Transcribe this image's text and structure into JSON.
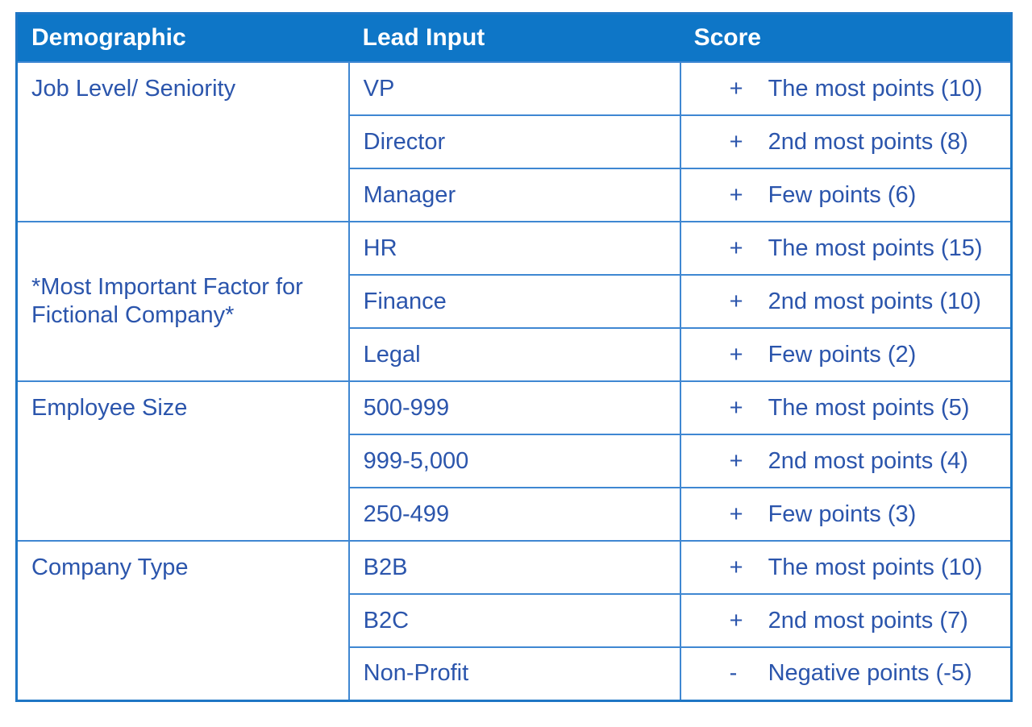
{
  "table": {
    "columns": [
      "Demographic",
      "Lead Input",
      "Score"
    ],
    "groups": [
      {
        "demographic": "Job Level/ Seniority",
        "rows": [
          {
            "lead": "VP",
            "sign": "+",
            "score": "The most points (10)"
          },
          {
            "lead": "Director",
            "sign": "+",
            "score": "2nd most points (8)"
          },
          {
            "lead": "Manager",
            "sign": "+",
            "score": "Few points (6)"
          }
        ]
      },
      {
        "demographic": "*Most Important Factor for Fictional Company*",
        "rows": [
          {
            "lead": "HR",
            "sign": "+",
            "score": "The most points (15)"
          },
          {
            "lead": "Finance",
            "sign": "+",
            "score": "2nd most points (10)"
          },
          {
            "lead": "Legal",
            "sign": "+",
            "score": "Few points (2)"
          }
        ]
      },
      {
        "demographic": "Employee Size",
        "rows": [
          {
            "lead": "500-999",
            "sign": "+",
            "score": "The most points (5)"
          },
          {
            "lead": "999-5,000",
            "sign": "+",
            "score": "2nd most points (4)"
          },
          {
            "lead": "250-499",
            "sign": "+",
            "score": "Few points (3)"
          }
        ]
      },
      {
        "demographic": "Company Type",
        "rows": [
          {
            "lead": "B2B",
            "sign": "+",
            "score": "The most points (10)"
          },
          {
            "lead": "B2C",
            "sign": "+",
            "score": "2nd most points (7)"
          },
          {
            "lead": "Non-Profit",
            "sign": "-",
            "score": "Negative points (-5)"
          }
        ]
      }
    ]
  },
  "colors": {
    "header_bg": "#0e76c7",
    "header_text": "#ffffff",
    "body_text": "#2b55ac",
    "border": "#3f87d2",
    "outer_border": "#1f76c5"
  }
}
